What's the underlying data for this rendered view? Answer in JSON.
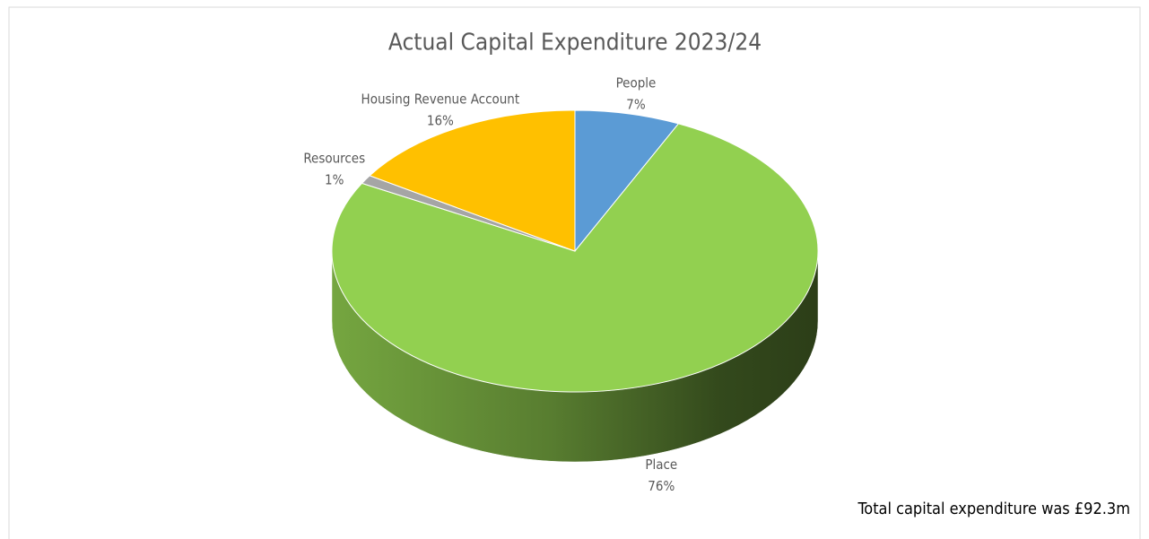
{
  "chart_data": {
    "type": "pie",
    "title": "Actual Capital Expenditure 2023/24",
    "categories": [
      "People",
      "Place",
      "Resources",
      "Housing Revenue Account"
    ],
    "values": [
      7,
      76,
      1,
      16
    ],
    "value_labels": [
      "7%",
      "76%",
      "1%",
      "16%"
    ],
    "colors": [
      "#5b9bd5",
      "#92d050",
      "#a5a5a5",
      "#ffc000"
    ],
    "annotation": "Total capital expenditure was £92.3m"
  }
}
